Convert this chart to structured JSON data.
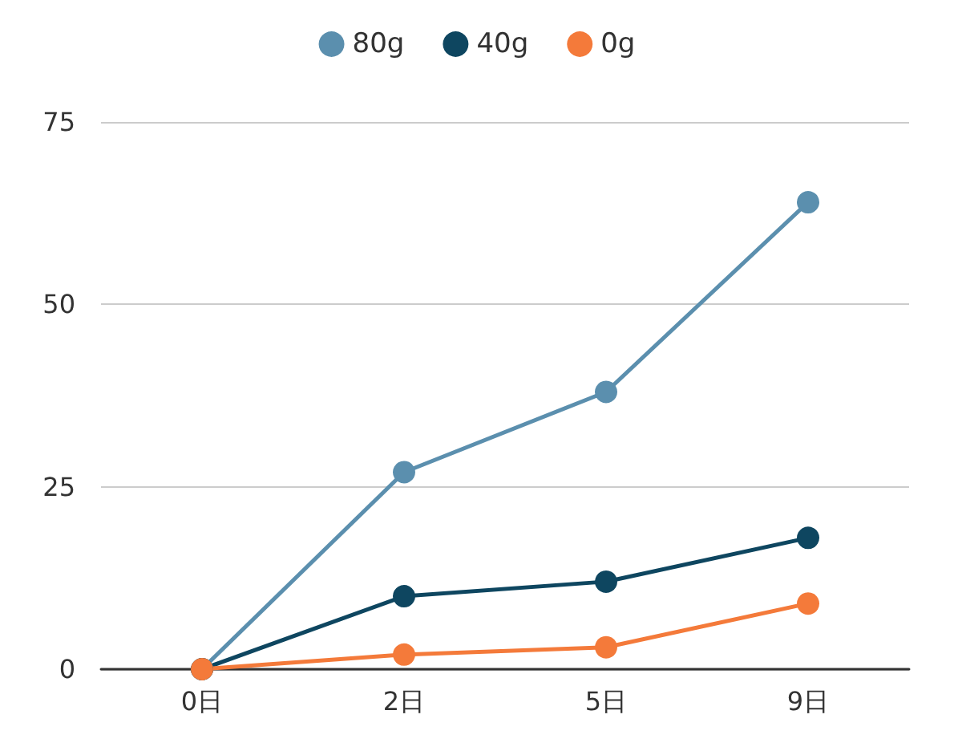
{
  "chart_data": {
    "type": "line",
    "categories": [
      "0日",
      "2日",
      "5日",
      "9日"
    ],
    "series": [
      {
        "name": "80g",
        "color": "#5b8fae",
        "values": [
          0,
          27,
          38,
          64
        ]
      },
      {
        "name": "40g",
        "color": "#0e4660",
        "values": [
          0,
          10,
          12,
          18
        ]
      },
      {
        "name": "0g",
        "color": "#f47a3a",
        "values": [
          0,
          2,
          3,
          9
        ]
      }
    ],
    "ylim": [
      0,
      75
    ],
    "yticks": [
      0,
      25,
      50,
      75
    ],
    "grid": "y",
    "legend": "top",
    "marker": "circle",
    "line_style": "solid"
  }
}
